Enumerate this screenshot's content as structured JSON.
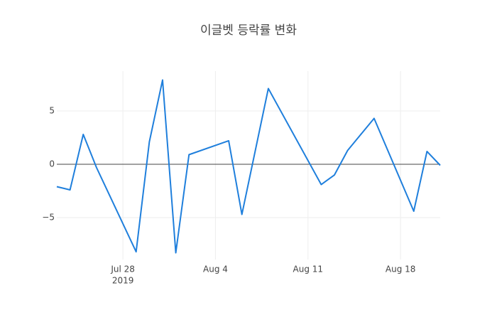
{
  "chart_data": {
    "type": "line",
    "title": "이글벳 등락률 변화",
    "x": [
      "2019-07-23",
      "2019-07-24",
      "2019-07-25",
      "2019-07-26",
      "2019-07-29",
      "2019-07-30",
      "2019-07-31",
      "2019-08-01",
      "2019-08-02",
      "2019-08-05",
      "2019-08-06",
      "2019-08-08",
      "2019-08-12",
      "2019-08-13",
      "2019-08-14",
      "2019-08-16",
      "2019-08-19",
      "2019-08-20",
      "2019-08-21"
    ],
    "series": [
      {
        "color": "#1f7fdc",
        "values": [
          -2.1,
          -2.4,
          2.8,
          -0.3,
          -8.2,
          2.1,
          7.9,
          -8.3,
          0.9,
          2.2,
          -4.7,
          7.1,
          -1.9,
          -1.0,
          1.3,
          4.3,
          -4.4,
          1.2,
          -0.1
        ]
      }
    ],
    "xlim": [
      "2019-07-23",
      "2019-08-21"
    ],
    "xticks": [
      {
        "value": "2019-07-28",
        "label": "Jul 28"
      },
      {
        "value": "2019-08-04",
        "label": "Aug 4"
      },
      {
        "value": "2019-08-11",
        "label": "Aug 11"
      },
      {
        "value": "2019-08-18",
        "label": "Aug 18"
      }
    ],
    "x_tick_sublabel": "2019",
    "ylim": [
      -8.93,
      8.73
    ],
    "yticks": [
      {
        "value": -5,
        "label": "−5"
      },
      0,
      5
    ],
    "grid": true,
    "zeroline": true
  }
}
